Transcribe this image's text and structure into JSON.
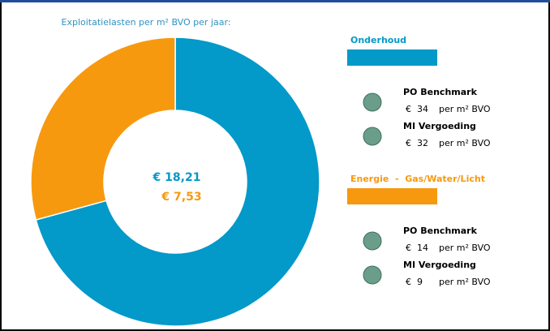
{
  "chart_data": {
    "type": "donut",
    "title": "Exploitatielasten per m² BVO per jaar:",
    "categories": [
      "Onderhoud",
      "Energie  -  Gas/Water/Licht"
    ],
    "values": [
      18.21,
      7.53
    ],
    "value_labels": [
      "€ 18,21",
      "€ 7,53"
    ],
    "colors": [
      "#0399c9",
      "#f7990f"
    ],
    "benchmarks": [
      [
        {
          "name": "PO Benchmark",
          "value": 34,
          "value_label": "€  34",
          "unit": "per m² BVO"
        },
        {
          "name": "MI Vergoeding",
          "value": 32,
          "value_label": "€  32",
          "unit": "per m² BVO"
        }
      ],
      [
        {
          "name": "PO Benchmark",
          "value": 14,
          "value_label": "€  14",
          "unit": "per m² BVO"
        },
        {
          "name": "MI Vergoeding",
          "value": 9,
          "value_label": "€  9",
          "unit": "per m² BVO"
        }
      ]
    ]
  }
}
